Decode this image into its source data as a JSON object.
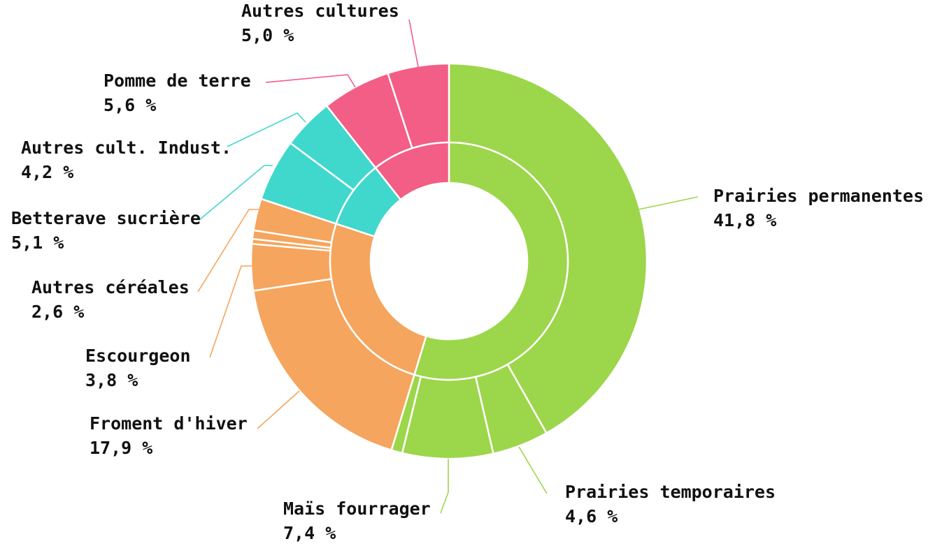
{
  "chart_data": {
    "type": "sunburst",
    "groups": [
      {
        "color": "#9cd64b",
        "categories": [
          "Prairies permanentes",
          "Prairies temporaires",
          "Maïs fourrager",
          null
        ],
        "values": [
          41.8,
          4.6,
          7.4,
          0.9
        ],
        "value_labels": [
          "41,8 %",
          "4,6 %",
          "7,4 %",
          null
        ]
      },
      {
        "color": "#f5a55e",
        "categories": [
          "Froment d'hiver",
          "Escourgeon",
          null,
          null,
          "Autres céréales"
        ],
        "values": [
          17.9,
          3.8,
          0.4,
          0.7,
          2.6
        ],
        "value_labels": [
          "17,9 %",
          "3,8 %",
          null,
          null,
          "2,6 %"
        ]
      },
      {
        "color": "#40d7cc",
        "categories": [
          "Betterave sucrière",
          "Autres cult. Indust."
        ],
        "values": [
          5.1,
          4.2
        ],
        "value_labels": [
          "5,1 %",
          "4,2 %"
        ]
      },
      {
        "color": "#f25e86",
        "categories": [
          "Pomme de terre",
          "Autres cultures"
        ],
        "values": [
          5.6,
          5.0
        ],
        "value_labels": [
          "5,6 %",
          "5,0 %"
        ]
      }
    ]
  }
}
